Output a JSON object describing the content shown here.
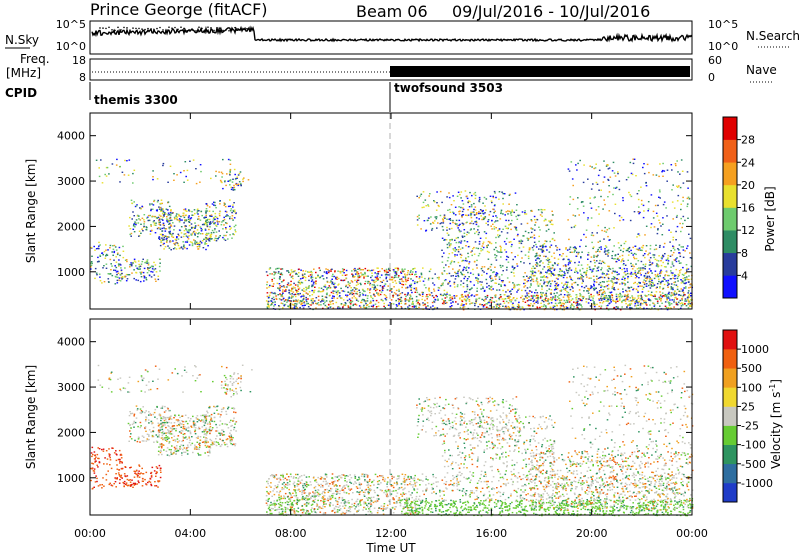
{
  "header": {
    "station": "Prince George (fitACF)",
    "beam": "Beam 06",
    "date_range": "09/Jul/2016 - 10/Jul/2016"
  },
  "labels": {
    "nsky": "N.Sky",
    "nsearch": "N.Search",
    "freq_line1": "Freq.",
    "freq_line2": "[MHz]",
    "nave": "Nave",
    "cpid": "CPID"
  },
  "noise_panel": {
    "left_ticks": [
      "10^5",
      "10^0"
    ],
    "right_ticks": [
      "10^5",
      "10^0"
    ]
  },
  "freq_panel": {
    "left_ticks": [
      "18",
      "8"
    ],
    "right_ticks": [
      "60",
      "0"
    ]
  },
  "cpid_panel": {
    "programs": [
      {
        "name": "themis 3300",
        "start_hour": 0
      },
      {
        "name": "twofsound 3503",
        "start_hour": 12.0
      }
    ]
  },
  "power_panel": {
    "ylabel": "Slant Range [km]",
    "yticks": [
      "1000",
      "2000",
      "3000",
      "4000"
    ],
    "colorbar_label": "Power [dB]",
    "colorbar_ticks": [
      "4",
      "8",
      "12",
      "16",
      "20",
      "24",
      "28"
    ],
    "colorbar_colors": [
      "#1010ff",
      "#283c9c",
      "#2e8c64",
      "#6ecb6e",
      "#e8e02e",
      "#f5a020",
      "#f06018",
      "#e00000"
    ]
  },
  "velocity_panel": {
    "ylabel": "Slant Range [km]",
    "yticks": [
      "1000",
      "2000",
      "3000",
      "4000"
    ],
    "colorbar_label": "Velocity [m s^-1]",
    "colorbar_ticks": [
      "1000",
      "500",
      "100",
      "25",
      "-25",
      "-100",
      "-500",
      "-1000"
    ],
    "colorbar_colors": [
      "#1f3cc8",
      "#2e6ea0",
      "#2e9460",
      "#66cc33",
      "#c8c8c0",
      "#f0d830",
      "#f0a020",
      "#f06010",
      "#e01010"
    ]
  },
  "xaxis": {
    "label": "Time UT",
    "ticks": [
      "00:00",
      "04:00",
      "08:00",
      "12:00",
      "16:00",
      "20:00",
      "00:00"
    ]
  }
}
